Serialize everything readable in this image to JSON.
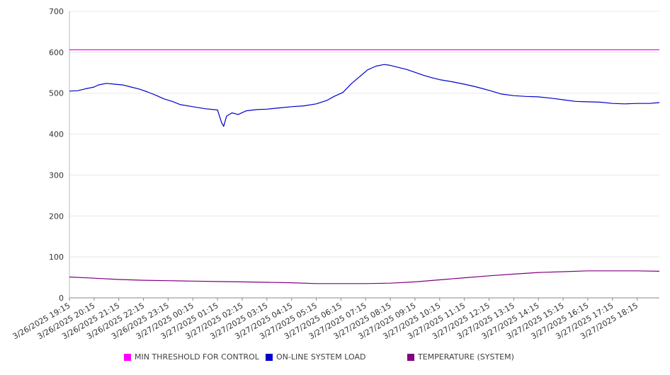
{
  "chart_data": {
    "type": "line",
    "ylim": [
      0,
      700
    ],
    "y_ticks": [
      0,
      100,
      200,
      300,
      400,
      500,
      600,
      700
    ],
    "x_tick_labels": [
      "3/26/2025 19:15",
      "3/26/2025 20:15",
      "3/26/2025 21:15",
      "3/26/2025 22:15",
      "3/26/2025 23:15",
      "3/27/2025 00:15",
      "3/27/2025 01:15",
      "3/27/2025 02:15",
      "3/27/2025 03:15",
      "3/27/2025 04:15",
      "3/27/2025 05:15",
      "3/27/2025 06:15",
      "3/27/2025 07:15",
      "3/27/2025 08:15",
      "3/27/2025 09:15",
      "3/27/2025 10:15",
      "3/27/2025 11:15",
      "3/27/2025 12:15",
      "3/27/2025 13:15",
      "3/27/2025 14:15",
      "3/27/2025 15:15",
      "3/27/2025 16:15",
      "3/27/2025 17:15",
      "3/27/2025 18:15"
    ],
    "grid": true,
    "legend_position": "bottom",
    "series": [
      {
        "name": "MIN THRESHOLD FOR CONTROL",
        "color": "#ff00ff",
        "points": [
          [
            "3/26/2025 19:15",
            606
          ],
          [
            "3/27/2025 19:09",
            606
          ]
        ]
      },
      {
        "name": "ON-LINE SYSTEM LOAD",
        "color": "#0000cc",
        "points": [
          [
            "3/26/2025 19:15",
            505
          ],
          [
            "3/26/2025 19:35",
            506
          ],
          [
            "3/26/2025 19:55",
            511
          ],
          [
            "3/26/2025 20:15",
            515
          ],
          [
            "3/26/2025 20:25",
            520
          ],
          [
            "3/26/2025 20:45",
            524
          ],
          [
            "3/26/2025 21:05",
            522
          ],
          [
            "3/26/2025 21:25",
            520
          ],
          [
            "3/26/2025 21:45",
            515
          ],
          [
            "3/26/2025 22:05",
            510
          ],
          [
            "3/26/2025 22:25",
            503
          ],
          [
            "3/26/2025 22:45",
            495
          ],
          [
            "3/26/2025 23:05",
            486
          ],
          [
            "3/26/2025 23:25",
            480
          ],
          [
            "3/26/2025 23:45",
            472
          ],
          [
            "3/27/2025 00:15",
            467
          ],
          [
            "3/27/2025 00:45",
            462
          ],
          [
            "3/27/2025 01:15",
            459
          ],
          [
            "3/27/2025 01:25",
            428
          ],
          [
            "3/27/2025 01:30",
            419
          ],
          [
            "3/27/2025 01:37",
            444
          ],
          [
            "3/27/2025 01:50",
            452
          ],
          [
            "3/27/2025 02:05",
            448
          ],
          [
            "3/27/2025 02:25",
            457
          ],
          [
            "3/27/2025 02:50",
            460
          ],
          [
            "3/27/2025 03:15",
            461
          ],
          [
            "3/27/2025 03:45",
            464
          ],
          [
            "3/27/2025 04:15",
            467
          ],
          [
            "3/27/2025 04:45",
            469
          ],
          [
            "3/27/2025 05:15",
            474
          ],
          [
            "3/27/2025 05:40",
            482
          ],
          [
            "3/27/2025 06:00",
            493
          ],
          [
            "3/27/2025 06:20",
            502
          ],
          [
            "3/27/2025 06:40",
            523
          ],
          [
            "3/27/2025 07:00",
            540
          ],
          [
            "3/27/2025 07:20",
            557
          ],
          [
            "3/27/2025 07:40",
            566
          ],
          [
            "3/27/2025 08:00",
            570
          ],
          [
            "3/27/2025 08:15",
            568
          ],
          [
            "3/27/2025 08:35",
            563
          ],
          [
            "3/27/2025 08:55",
            558
          ],
          [
            "3/27/2025 09:15",
            551
          ],
          [
            "3/27/2025 09:35",
            544
          ],
          [
            "3/27/2025 09:55",
            538
          ],
          [
            "3/27/2025 10:15",
            533
          ],
          [
            "3/27/2025 10:45",
            528
          ],
          [
            "3/27/2025 11:15",
            522
          ],
          [
            "3/27/2025 11:45",
            515
          ],
          [
            "3/27/2025 12:15",
            507
          ],
          [
            "3/27/2025 12:45",
            498
          ],
          [
            "3/27/2025 13:15",
            494
          ],
          [
            "3/27/2025 13:45",
            492
          ],
          [
            "3/27/2025 14:15",
            491
          ],
          [
            "3/27/2025 14:45",
            488
          ],
          [
            "3/27/2025 15:15",
            484
          ],
          [
            "3/27/2025 15:45",
            480
          ],
          [
            "3/27/2025 16:15",
            479
          ],
          [
            "3/27/2025 16:45",
            478
          ],
          [
            "3/27/2025 17:15",
            475
          ],
          [
            "3/27/2025 17:45",
            474
          ],
          [
            "3/27/2025 18:15",
            475
          ],
          [
            "3/27/2025 18:45",
            475
          ],
          [
            "3/27/2025 19:09",
            477
          ]
        ]
      },
      {
        "name": "TEMPERATURE (SYSTEM)",
        "color": "#800080",
        "points": [
          [
            "3/26/2025 19:15",
            51
          ],
          [
            "3/26/2025 20:15",
            48
          ],
          [
            "3/26/2025 21:15",
            45
          ],
          [
            "3/26/2025 22:15",
            43
          ],
          [
            "3/26/2025 23:15",
            42
          ],
          [
            "3/27/2025 00:15",
            41
          ],
          [
            "3/27/2025 01:15",
            40
          ],
          [
            "3/27/2025 02:15",
            39
          ],
          [
            "3/27/2025 03:15",
            38
          ],
          [
            "3/27/2025 04:15",
            37
          ],
          [
            "3/27/2025 05:15",
            35
          ],
          [
            "3/27/2025 06:15",
            35
          ],
          [
            "3/27/2025 07:15",
            35
          ],
          [
            "3/27/2025 08:15",
            36
          ],
          [
            "3/27/2025 09:15",
            39
          ],
          [
            "3/27/2025 10:15",
            44
          ],
          [
            "3/27/2025 11:15",
            49
          ],
          [
            "3/27/2025 12:15",
            54
          ],
          [
            "3/27/2025 13:15",
            58
          ],
          [
            "3/27/2025 14:15",
            62
          ],
          [
            "3/27/2025 15:15",
            64
          ],
          [
            "3/27/2025 16:15",
            66
          ],
          [
            "3/27/2025 17:15",
            66
          ],
          [
            "3/27/2025 18:15",
            66
          ],
          [
            "3/27/2025 19:09",
            65
          ]
        ]
      }
    ]
  }
}
